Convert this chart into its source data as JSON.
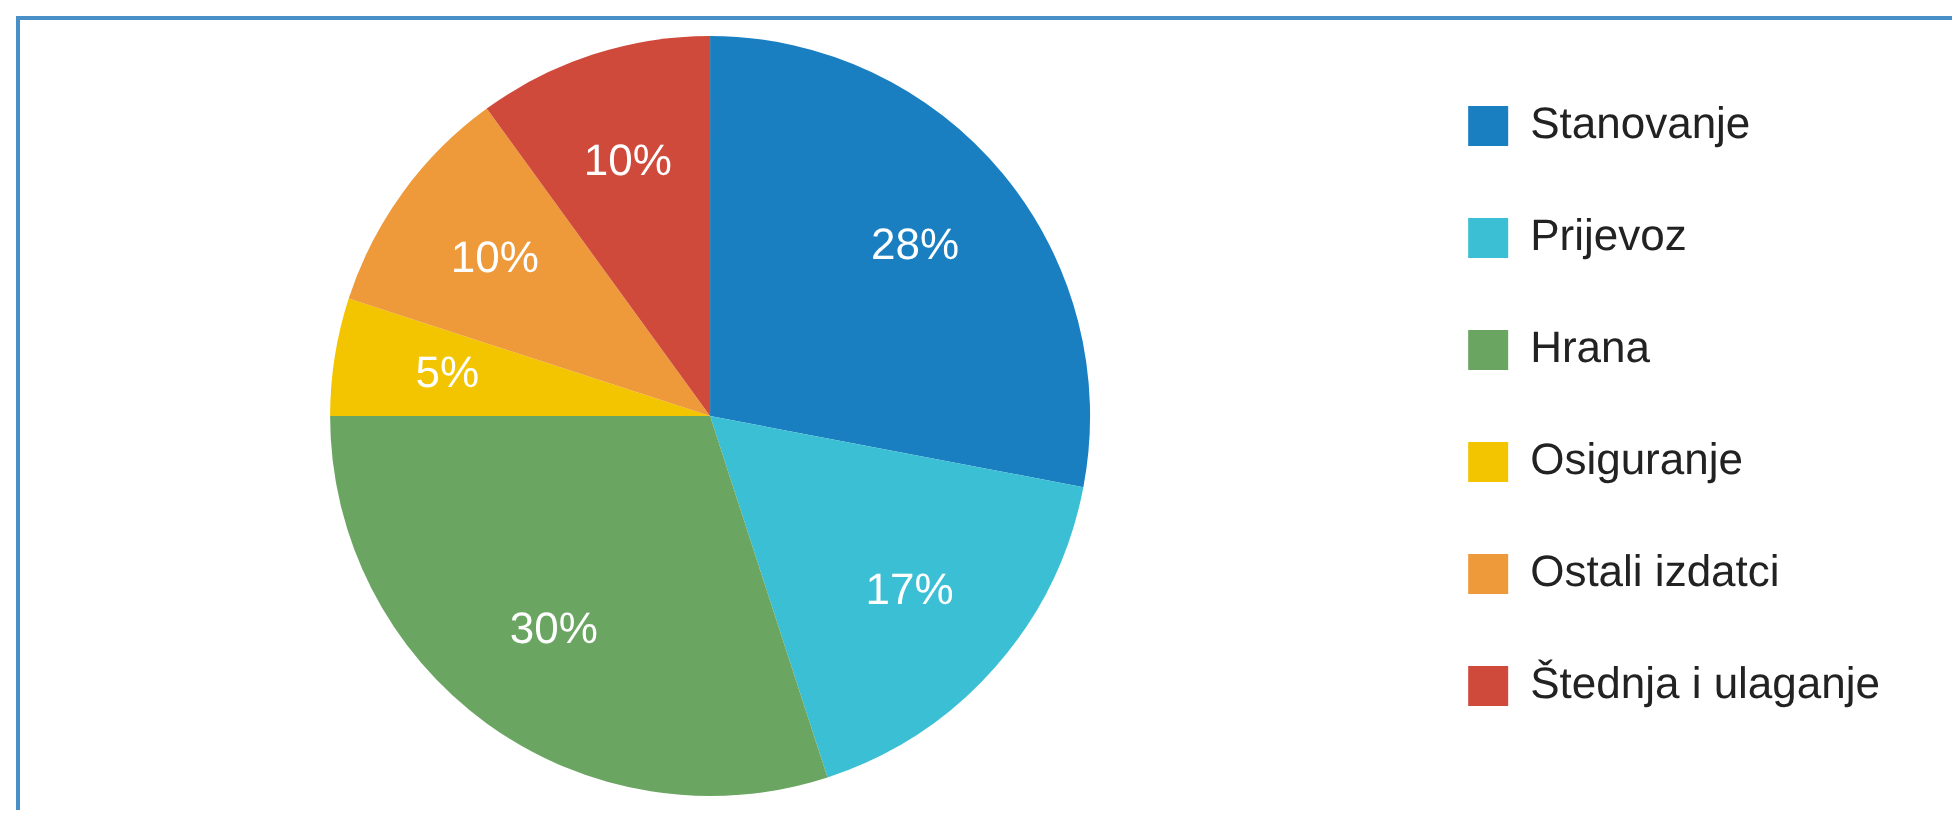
{
  "chart_data": {
    "type": "pie",
    "categories": [
      "Stanovanje",
      "Prijevoz",
      "Hrana",
      "Osiguranje",
      "Ostali izdatci",
      "Štednja i ulaganje"
    ],
    "values": [
      28,
      17,
      30,
      5,
      10,
      10
    ],
    "colors": [
      "#1a7fc1",
      "#3bbfd4",
      "#6aa562",
      "#f2c500",
      "#ee9a3a",
      "#d04a3c"
    ],
    "value_labels": [
      "28%",
      "17%",
      "30%",
      "5%",
      "10%",
      "10%"
    ],
    "legend": "right"
  }
}
